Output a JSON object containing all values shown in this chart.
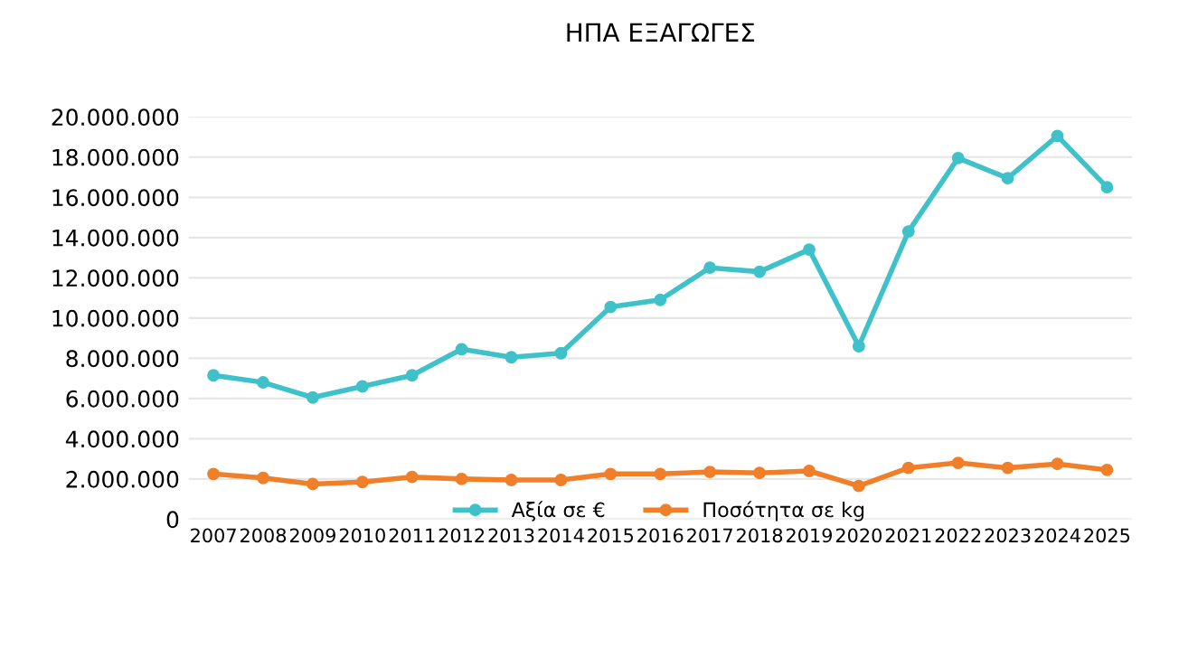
{
  "chart_data": {
    "type": "line",
    "title": "ΗΠΑ ΕΞΑΓΩΓΕΣ",
    "categories": [
      "2007",
      "2008",
      "2009",
      "2010",
      "2011",
      "2012",
      "2013",
      "2014",
      "2015",
      "2016",
      "2017",
      "2018",
      "2019",
      "2020",
      "2021",
      "2022",
      "2023",
      "2024",
      "2025"
    ],
    "series": [
      {
        "name": "Αξία σε €",
        "color": "#3fc1c9",
        "values": [
          7150000,
          6800000,
          6050000,
          6600000,
          7150000,
          8450000,
          8050000,
          8250000,
          10550000,
          10900000,
          12500000,
          12300000,
          13400000,
          8600000,
          14300000,
          17950000,
          16950000,
          19050000,
          16500000
        ]
      },
      {
        "name": "Ποσότητα σε kg",
        "color": "#f07f2a",
        "values": [
          2250000,
          2050000,
          1750000,
          1850000,
          2100000,
          2000000,
          1950000,
          1950000,
          2250000,
          2250000,
          2350000,
          2300000,
          2400000,
          1650000,
          2550000,
          2800000,
          2550000,
          2750000,
          2450000
        ]
      }
    ],
    "ylim": [
      0,
      20000000
    ],
    "yticks": [
      {
        "value": 0,
        "label": "0"
      },
      {
        "value": 2000000,
        "label": "2.000.000"
      },
      {
        "value": 4000000,
        "label": "4.000.000"
      },
      {
        "value": 6000000,
        "label": "6.000.000"
      },
      {
        "value": 8000000,
        "label": "8.000.000"
      },
      {
        "value": 10000000,
        "label": "10.000.000"
      },
      {
        "value": 12000000,
        "label": "12.000.000"
      },
      {
        "value": 14000000,
        "label": "14.000.000"
      },
      {
        "value": 16000000,
        "label": "16.000.000"
      },
      {
        "value": 18000000,
        "label": "18.000.000"
      },
      {
        "value": 20000000,
        "label": "20.000.000"
      }
    ],
    "grid": "y",
    "legend": "bottom",
    "marker": "circle",
    "line_style": "solid"
  }
}
